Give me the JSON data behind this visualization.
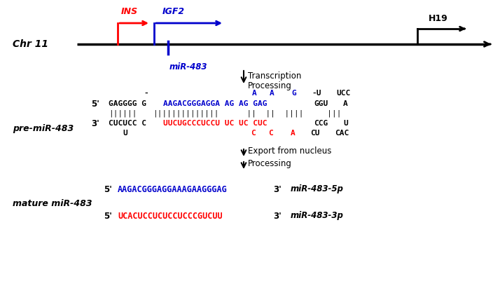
{
  "chr_label": "Chr 11",
  "ins_label": "INS",
  "igf2_label": "IGF2",
  "h19_label": "H19",
  "mir483_label": "miR-483",
  "pre_mir_label": "pre-miR-483",
  "mature_label": "mature miR-483",
  "color_red": "#FF0000",
  "color_blue": "#0000CC",
  "color_black": "#000000",
  "background": "#FFFFFF"
}
